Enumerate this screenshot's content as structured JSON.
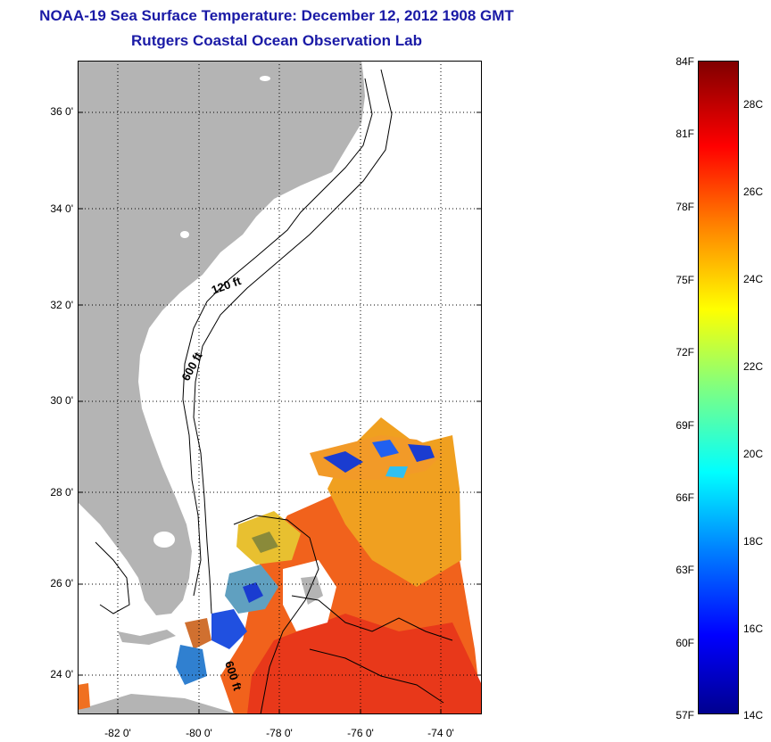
{
  "title": {
    "line1": "NOAA-19 Sea Surface Temperature:  December 12, 2012 1908 GMT",
    "line2": "Rutgers Coastal Ocean Observation Lab"
  },
  "map": {
    "lat_labels": [
      "36 0'",
      "34 0'",
      "32 0'",
      "30 0'",
      "28 0'",
      "26 0'",
      "24 0'"
    ],
    "lon_labels": [
      "-82 0'",
      "-80 0'",
      "-78 0'",
      "-76 0'",
      "-74 0'"
    ],
    "isobath_labels": [
      "120 ft",
      "600 ft",
      "600 ft"
    ],
    "land_color": "#b4b4b4",
    "no_data_color": "#ffffff"
  },
  "colorbar": {
    "fahrenheit_labels": [
      "84F",
      "81F",
      "78F",
      "75F",
      "72F",
      "69F",
      "66F",
      "63F",
      "60F",
      "57F"
    ],
    "celsius_labels": [
      "28C",
      "26C",
      "24C",
      "22C",
      "20C",
      "18C",
      "16C",
      "14C"
    ],
    "colors": [
      "#00008f",
      "#0000ff",
      "#0080ff",
      "#00ffff",
      "#80ff80",
      "#ffff00",
      "#ff8000",
      "#ff0000",
      "#800000"
    ]
  }
}
